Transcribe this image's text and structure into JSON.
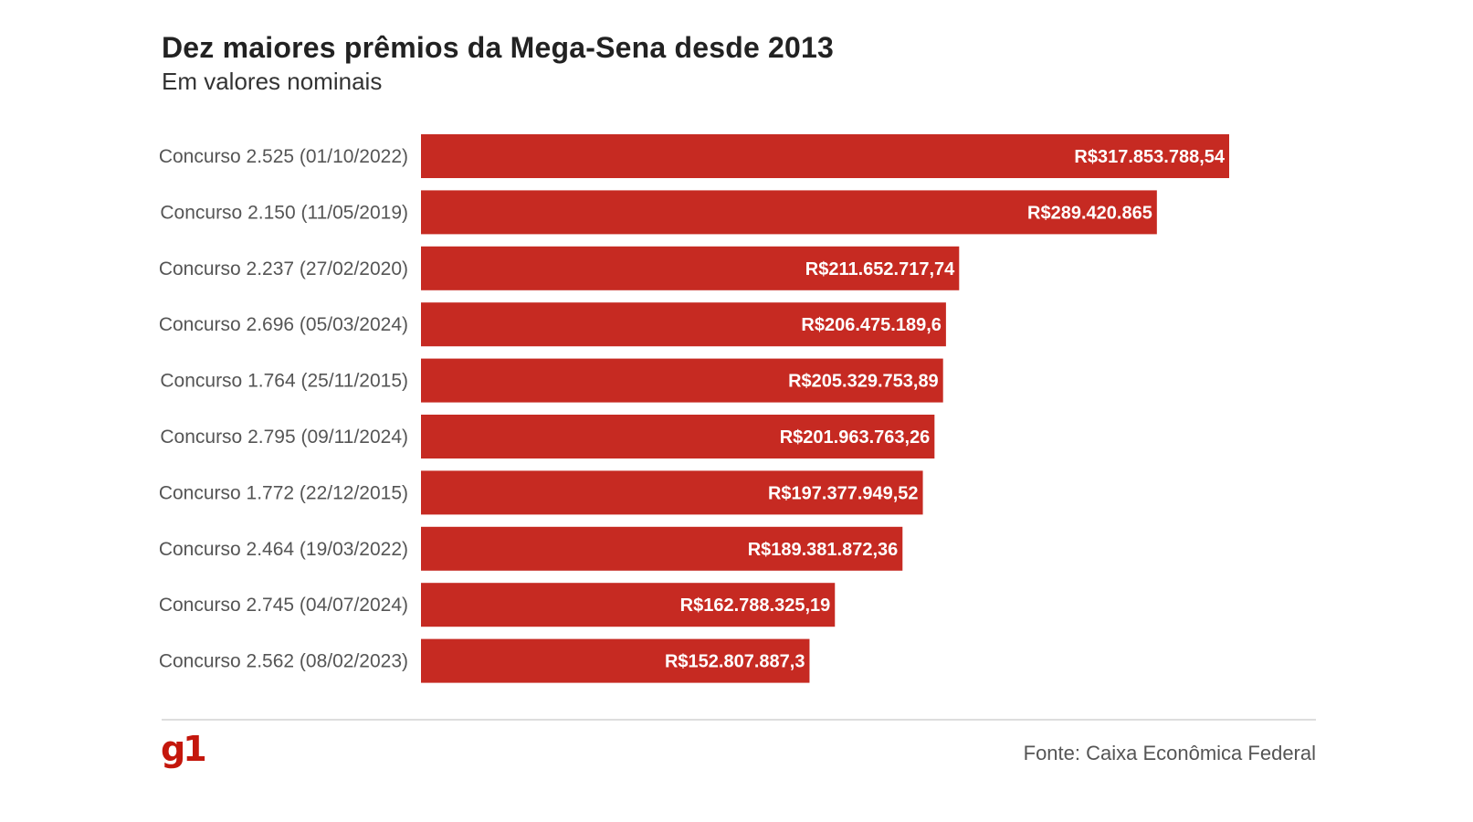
{
  "header": {
    "title": "Dez maiores prêmios da Mega-Sena desde 2013",
    "subtitle": "Em valores nominais"
  },
  "footer": {
    "logo": "g1",
    "source": "Fonte: Caixa Econômica Federal"
  },
  "colors": {
    "bar": "#c62a22",
    "label": "#555555",
    "value_text": "#ffffff",
    "logo": "#c4170c"
  },
  "chart_data": {
    "type": "bar",
    "orientation": "horizontal",
    "title": "Dez maiores prêmios da Mega-Sena desde 2013",
    "subtitle": "Em valores nominais",
    "xlabel": "",
    "ylabel": "",
    "grid": false,
    "categories": [
      "Concurso 2.525 (01/10/2022)",
      "Concurso 2.150 (11/05/2019)",
      "Concurso 2.237 (27/02/2020)",
      "Concurso 2.696 (05/03/2024)",
      "Concurso 1.764 (25/11/2015)",
      "Concurso 2.795 (09/11/2024)",
      "Concurso 1.772 (22/12/2015)",
      "Concurso 2.464 (19/03/2022)",
      "Concurso 2.745 (04/07/2024)",
      "Concurso 2.562 (08/02/2023)"
    ],
    "values": [
      317853788.54,
      289420865,
      211652717.74,
      206475189.6,
      205329753.89,
      201963763.26,
      197377949.52,
      189381872.36,
      162788325.19,
      152807887.3
    ],
    "value_labels": [
      "R$317.853.788,54",
      "R$289.420.865",
      "R$211.652.717,74",
      "R$206.475.189,6",
      "R$205.329.753,89",
      "R$201.963.763,26",
      "R$197.377.949,52",
      "R$189.381.872,36",
      "R$162.788.325,19",
      "R$152.807.887,3"
    ],
    "xlim": [
      0,
      317853788.54
    ]
  }
}
